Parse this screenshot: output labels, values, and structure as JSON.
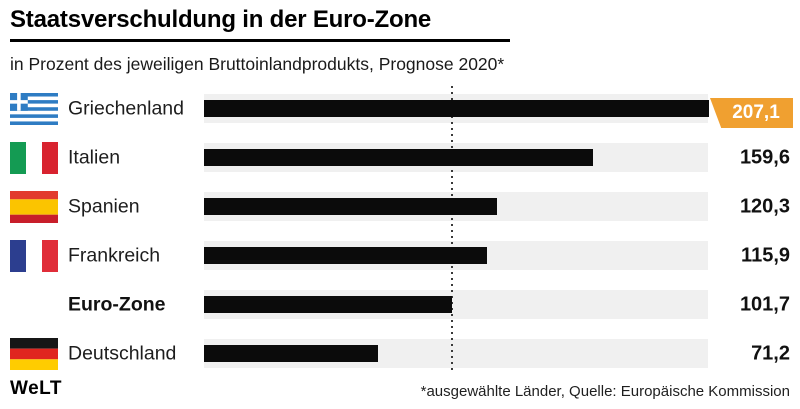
{
  "header": {
    "title": "Staatsverschuldung in der Euro-Zone",
    "subtitle": "in Prozent des jeweiligen Bruttoinlandprodukts, Prognose 2020*"
  },
  "chart_data": {
    "type": "bar",
    "orientation": "horizontal",
    "title": "Staatsverschuldung in der Euro-Zone",
    "subtitle": "in Prozent des jeweiligen Bruttoinlandprodukts, Prognose 2020*",
    "categories": [
      "Griechenland",
      "Italien",
      "Spanien",
      "Frankreich",
      "Euro-Zone",
      "Deutschland"
    ],
    "values": [
      207.1,
      159.6,
      120.3,
      115.9,
      101.7,
      71.2
    ],
    "value_labels": [
      "207,1",
      "159,6",
      "120,3",
      "115,9",
      "101,7",
      "71,2"
    ],
    "axis_max": 206.7,
    "grid": false,
    "legend": false,
    "reference_line": {
      "value": 101.7,
      "style": "dotted"
    },
    "rows": [
      {
        "label": "Griechenland",
        "flag": "greece",
        "value": 207.1,
        "display": "207,1",
        "bold": false,
        "highlight": true
      },
      {
        "label": "Italien",
        "flag": "italy",
        "value": 159.6,
        "display": "159,6",
        "bold": false,
        "highlight": false
      },
      {
        "label": "Spanien",
        "flag": "spain",
        "value": 120.3,
        "display": "120,3",
        "bold": false,
        "highlight": false
      },
      {
        "label": "Frankreich",
        "flag": "france",
        "value": 115.9,
        "display": "115,9",
        "bold": false,
        "highlight": false
      },
      {
        "label": "Euro-Zone",
        "flag": null,
        "value": 101.7,
        "display": "101,7",
        "bold": true,
        "highlight": false
      },
      {
        "label": "Deutschland",
        "flag": "germany",
        "value": 71.2,
        "display": "71,2",
        "bold": false,
        "highlight": false
      }
    ]
  },
  "colors": {
    "bar": "#0b0b0b",
    "track": "#f0f0f0",
    "badge": "#f0a030",
    "badge_text": "#ffffff",
    "reference_line": "#3a3a3a"
  },
  "flags": {
    "greece": {
      "type": "greece",
      "blue": "#2e7cc3",
      "white": "#ffffff"
    },
    "italy": {
      "type": "vertical",
      "colors": [
        "#149b53",
        "#ffffff",
        "#d8232f"
      ]
    },
    "spain": {
      "type": "horizontal",
      "colors": [
        "#e23b2e",
        "#fbc400",
        "#c81e2a"
      ],
      "heights": [
        0.26,
        0.48,
        0.26
      ]
    },
    "france": {
      "type": "vertical",
      "colors": [
        "#2c3e8f",
        "#ffffff",
        "#e02d39"
      ]
    },
    "germany": {
      "type": "horizontal",
      "colors": [
        "#161616",
        "#e0251f",
        "#ffcc00"
      ],
      "heights": [
        0.333,
        0.333,
        0.334
      ]
    }
  },
  "footer": {
    "logo": "WeLT",
    "note": "*ausgewählte Länder, Quelle: Europäische Kommission"
  }
}
